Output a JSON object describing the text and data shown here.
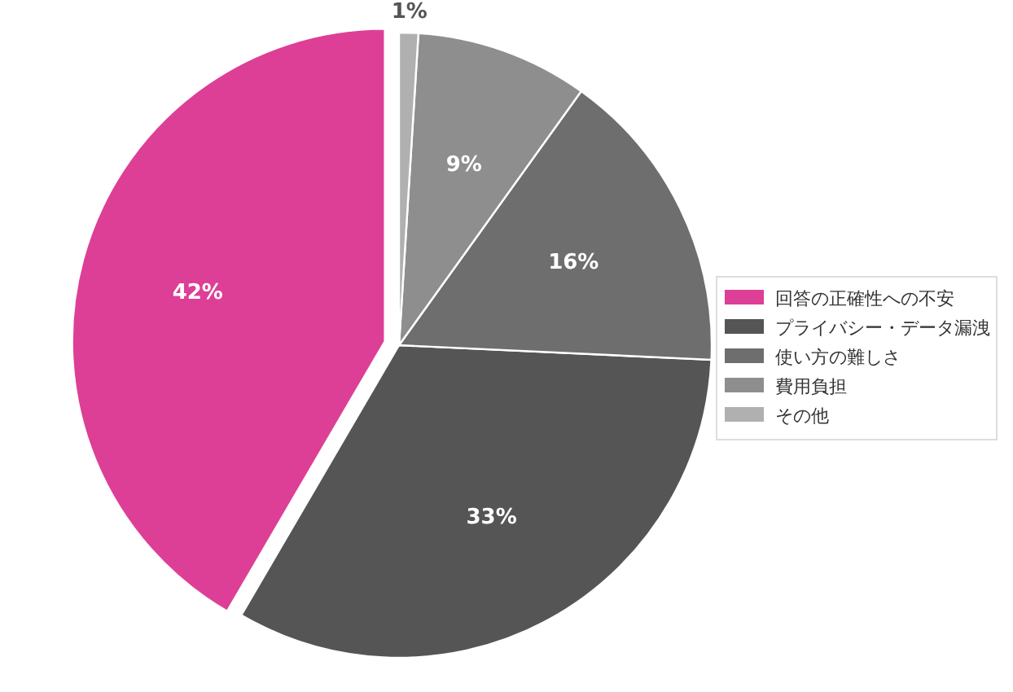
{
  "chart_data": {
    "type": "pie",
    "categories": [
      "回答の正確性への不安",
      "プライバシー・データ漏洩",
      "使い方の難しさ",
      "費用負担",
      "その他"
    ],
    "values": [
      42,
      33,
      16,
      9,
      1
    ],
    "colors": [
      "#dd3f96",
      "#555555",
      "#6e6e6e",
      "#8e8e8e",
      "#b0b0b0"
    ],
    "value_labels": [
      "42%",
      "33%",
      "16%",
      "9%",
      "1%"
    ],
    "legend": "right"
  }
}
